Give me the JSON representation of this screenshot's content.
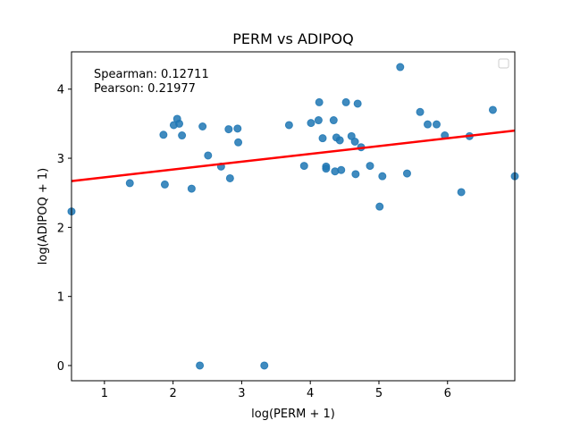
{
  "chart_data": {
    "type": "scatter",
    "title": "PERM vs ADIPOQ",
    "xlabel": "log(PERM + 1)",
    "ylabel": "log(ADIPOQ + 1)",
    "xlim": [
      0.52,
      6.98
    ],
    "ylim": [
      -0.22,
      4.54
    ],
    "xticks": [
      1,
      2,
      3,
      4,
      5,
      6
    ],
    "yticks": [
      0,
      1,
      2,
      3,
      4
    ],
    "grid": false,
    "legend": "top-right",
    "annotations": [
      "Spearman: 0.12711",
      "Pearson: 0.21977"
    ],
    "points_color": "#1f77b4",
    "regression_color": "#ff0000",
    "regression": {
      "x": [
        0.52,
        6.98
      ],
      "y": [
        2.67,
        3.4
      ]
    },
    "x": [
      0.52,
      1.37,
      1.86,
      1.88,
      2.01,
      2.06,
      2.09,
      2.13,
      2.27,
      2.39,
      2.43,
      2.51,
      2.7,
      2.81,
      2.83,
      2.94,
      2.95,
      3.33,
      3.69,
      3.91,
      4.01,
      4.12,
      4.13,
      4.18,
      4.23,
      4.23,
      4.34,
      4.36,
      4.38,
      4.43,
      4.45,
      4.52,
      4.6,
      4.65,
      4.66,
      4.69,
      4.74,
      4.87,
      5.01,
      5.05,
      5.31,
      5.41,
      5.6,
      5.71,
      5.84,
      5.96,
      6.2,
      6.32,
      6.66,
      6.98
    ],
    "y": [
      2.23,
      2.64,
      3.34,
      2.62,
      3.48,
      3.57,
      3.5,
      3.33,
      2.56,
      0.0,
      3.46,
      3.04,
      2.88,
      3.42,
      2.71,
      3.43,
      3.23,
      0.0,
      3.48,
      2.89,
      3.51,
      3.55,
      3.81,
      3.29,
      2.88,
      2.85,
      3.55,
      2.81,
      3.3,
      3.26,
      2.83,
      3.81,
      3.32,
      3.24,
      2.77,
      3.79,
      3.16,
      2.89,
      2.3,
      2.74,
      4.32,
      2.78,
      3.67,
      3.49,
      3.49,
      3.33,
      2.51,
      3.32,
      3.7,
      2.74
    ]
  }
}
